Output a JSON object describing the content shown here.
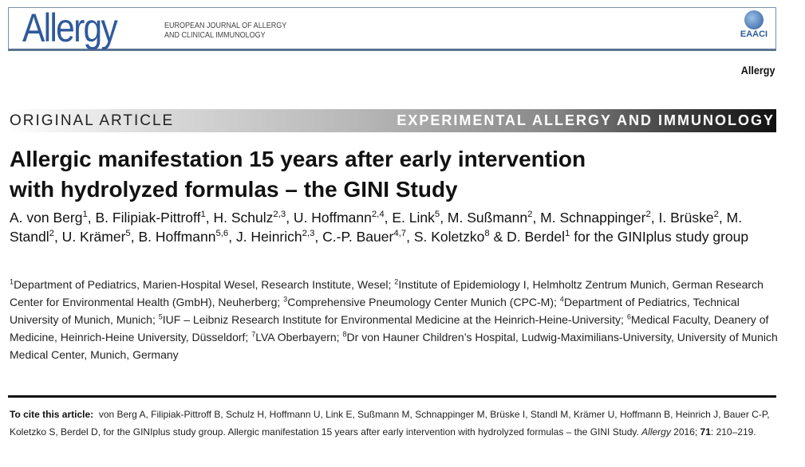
{
  "journal_header": {
    "logo_text": "Allergy",
    "subtitle_line1": "EUROPEAN JOURNAL OF ALLERGY",
    "subtitle_line2": "AND CLINICAL IMMUNOLOGY",
    "society_logo_text": "EAACI",
    "brand_color": "#2f5a9a"
  },
  "journal_name": "Allergy",
  "banner": {
    "left": "ORIGINAL ARTICLE",
    "right": "EXPERIMENTAL ALLERGY AND IMMUNOLOGY"
  },
  "title": {
    "line1": "Allergic manifestation 15 years after early intervention",
    "line2": "with hydrolyzed formulas – the GINI Study"
  },
  "authors": [
    {
      "t": "A. von Berg",
      "s": "1"
    },
    {
      "t": ", B. Filipiak-Pittroff",
      "s": "1"
    },
    {
      "t": ", H. Schulz",
      "s": "2,3"
    },
    {
      "t": ", U. Hoffmann",
      "s": "2,4"
    },
    {
      "t": ", E. Link",
      "s": "5"
    },
    {
      "t": ", M. Sußmann",
      "s": "2"
    },
    {
      "t": ", M. Schnappinger",
      "s": "2"
    },
    {
      "t": ", I. Brüske",
      "s": "2"
    },
    {
      "t": ", M. Standl",
      "s": "2"
    },
    {
      "t": ", U. Krämer",
      "s": "5"
    },
    {
      "t": ", B. Hoffmann",
      "s": "5,6"
    },
    {
      "t": ", J. Heinrich",
      "s": "2,3"
    },
    {
      "t": ", C.-P. Bauer",
      "s": "4,7"
    },
    {
      "t": ", S. Koletzko",
      "s": "8"
    },
    {
      "t": " & D. Berdel",
      "s": "1"
    },
    {
      "t": " for the GINIplus study group",
      "s": ""
    }
  ],
  "affiliations": [
    {
      "s": "1",
      "t": "Department of Pediatrics, Marien-Hospital Wesel, Research Institute, Wesel; "
    },
    {
      "s": "2",
      "t": "Institute of Epidemiology I, Helmholtz Zentrum Munich, German Research Center for Environmental Health (GmbH), Neuherberg; "
    },
    {
      "s": "3",
      "t": "Comprehensive Pneumology Center Munich (CPC-M); "
    },
    {
      "s": "4",
      "t": "Department of Pediatrics, Technical University of Munich, Munich; "
    },
    {
      "s": "5",
      "t": "IUF – Leibniz Research Institute for Environmental Medicine at the Heinrich-Heine-University; "
    },
    {
      "s": "6",
      "t": "Medical Faculty, Deanery of Medicine, Heinrich-Heine University, Düsseldorf; "
    },
    {
      "s": "7",
      "t": "LVA Oberbayern; "
    },
    {
      "s": "8",
      "t": "Dr von Hauner Children’s Hospital, Ludwig-Maximilians-University, University of Munich Medical Center, Munich, Germany"
    }
  ],
  "citation": {
    "label": "To cite this article:",
    "text": "von Berg A, Filipiak-Pittroff B, Schulz H, Hoffmann U, Link E, Sußmann M, Schnappinger M, Brüske I, Standl M, Krämer U, Hoffmann B, Heinrich J, Bauer C-P, Koletzko S, Berdel D, for the GINIplus study group. Allergic manifestation 15 years after early intervention with hydrolyzed formulas – the GINI Study. ",
    "journal": "Allergy",
    "year": " 2016; ",
    "volume": "71",
    "pages": ": 210–219."
  }
}
